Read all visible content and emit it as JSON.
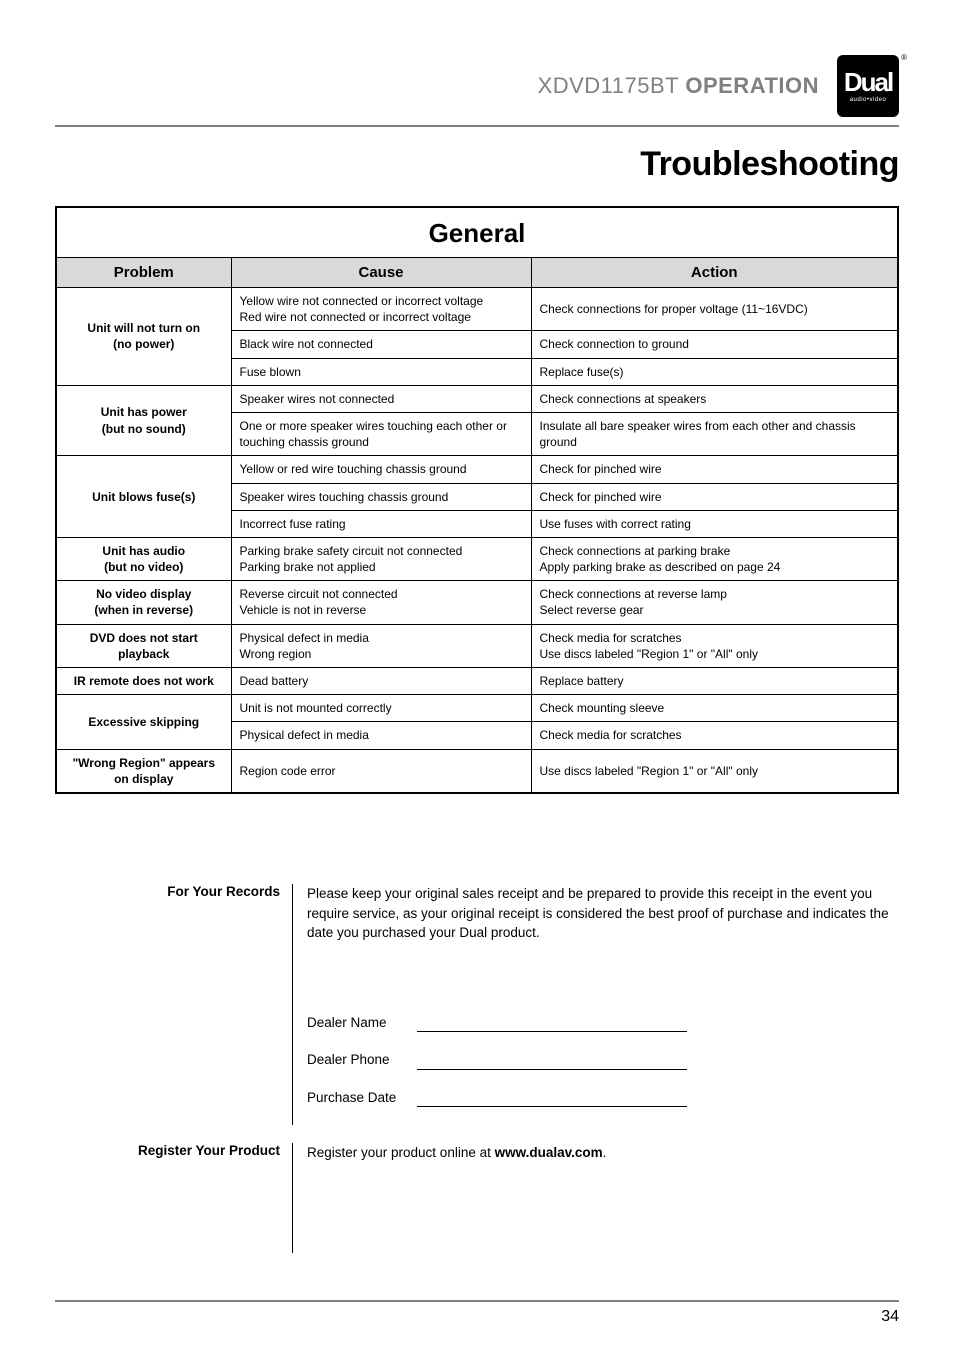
{
  "header": {
    "product": "XDVD1175BT",
    "section": "OPERATION",
    "logo_main": "Dual",
    "logo_sub": "audio•video",
    "logo_reg": "®"
  },
  "title": "Troubleshooting",
  "table": {
    "section": "General",
    "headers": [
      "Problem",
      "Cause",
      "Action"
    ],
    "rows": [
      {
        "problem": "Unit will not turn on\n(no power)",
        "problem_rowspan": 3,
        "cause": "Yellow wire not connected or incorrect voltage\nRed wire not connected or incorrect voltage",
        "action": "Check connections for proper voltage (11~16VDC)"
      },
      {
        "cause": "Black wire not connected",
        "action": "Check connection to ground"
      },
      {
        "cause": "Fuse blown",
        "action": "Replace fuse(s)"
      },
      {
        "problem": "Unit has power\n(but no sound)",
        "problem_rowspan": 2,
        "cause": "Speaker wires not connected",
        "action": "Check connections at speakers"
      },
      {
        "cause": "One or more speaker wires touching each other or touching chassis ground",
        "action": "Insulate all bare speaker wires from each other and chassis ground"
      },
      {
        "problem": "Unit blows fuse(s)",
        "problem_rowspan": 3,
        "cause": "Yellow or red wire touching chassis ground",
        "action": "Check for pinched wire"
      },
      {
        "cause": "Speaker wires touching chassis ground",
        "action": "Check for pinched wire"
      },
      {
        "cause": "Incorrect fuse rating",
        "action": "Use fuses with correct rating"
      },
      {
        "problem": "Unit has audio\n(but no video)",
        "problem_rowspan": 1,
        "cause": "Parking brake safety circuit not connected\nParking brake not applied",
        "action": "Check connections at parking brake\nApply parking brake as described on page 24"
      },
      {
        "problem": "No video display\n(when in reverse)",
        "problem_rowspan": 1,
        "cause": "Reverse circuit not connected\nVehicle is not in reverse",
        "action": "Check connections at reverse lamp\nSelect reverse gear"
      },
      {
        "problem": "DVD does not start playback",
        "problem_rowspan": 1,
        "cause": "Physical defect in media\nWrong region",
        "action": "Check media for scratches\nUse discs labeled \"Region 1\" or \"All\" only"
      },
      {
        "problem": "IR remote does not work",
        "problem_rowspan": 1,
        "cause": "Dead battery",
        "action": "Replace battery"
      },
      {
        "problem": "Excessive skipping",
        "problem_rowspan": 2,
        "cause": "Unit is not mounted correctly",
        "action": "Check mounting sleeve"
      },
      {
        "cause": "Physical defect in media",
        "action": "Check media for scratches"
      },
      {
        "problem": "\"Wrong Region\" appears on display",
        "problem_rowspan": 1,
        "cause": "Region code error",
        "action": "Use discs labeled \"Region 1\" or \"All\" only"
      }
    ]
  },
  "records": {
    "label": "For Your Records",
    "text": "Please keep your original sales receipt and be prepared to provide this receipt in the event you require service, as your original receipt is considered the best proof of purchase and indicates the date you purchased your Dual product.",
    "fields": [
      "Dealer Name",
      "Dealer Phone",
      "Purchase Date"
    ]
  },
  "register": {
    "label": "Register Your Product",
    "text_pre": "Register your product online at ",
    "text_bold": "www.dualav.com",
    "text_post": "."
  },
  "page_number": "34"
}
